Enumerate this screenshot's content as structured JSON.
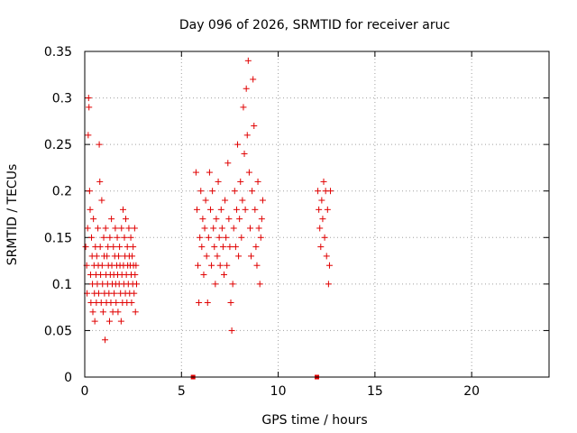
{
  "chart_data": {
    "type": "scatter",
    "title": "Day 096 of 2026, SRMTID for receiver aruc",
    "xlabel": "GPS time / hours",
    "ylabel": "SRMTID / TECUs",
    "xlim": [
      0,
      24
    ],
    "ylim": [
      0,
      0.35
    ],
    "xticks": [
      0,
      5,
      10,
      15,
      20
    ],
    "yticks": [
      0,
      0.05,
      0.1,
      0.15,
      0.2,
      0.25,
      0.3,
      0.35
    ],
    "xtick_labels": [
      "0",
      "5",
      "10",
      "15",
      "20"
    ],
    "ytick_labels": [
      "0",
      "0.05",
      "0.1",
      "0.15",
      "0.2",
      "0.25",
      "0.3",
      "0.35"
    ],
    "grid": true,
    "marker": "plus",
    "color": "#e00000",
    "series": [
      {
        "name": "SRMTID",
        "points": [
          [
            0.05,
            0.14
          ],
          [
            0.1,
            0.12
          ],
          [
            0.12,
            0.09
          ],
          [
            0.15,
            0.16
          ],
          [
            0.18,
            0.26
          ],
          [
            0.2,
            0.3
          ],
          [
            0.22,
            0.29
          ],
          [
            0.25,
            0.2
          ],
          [
            0.28,
            0.18
          ],
          [
            0.3,
            0.11
          ],
          [
            0.32,
            0.08
          ],
          [
            0.35,
            0.15
          ],
          [
            0.38,
            0.13
          ],
          [
            0.4,
            0.1
          ],
          [
            0.42,
            0.07
          ],
          [
            0.45,
            0.17
          ],
          [
            0.48,
            0.12
          ],
          [
            0.5,
            0.09
          ],
          [
            0.52,
            0.06
          ],
          [
            0.55,
            0.14
          ],
          [
            0.58,
            0.11
          ],
          [
            0.6,
            0.08
          ],
          [
            0.62,
            0.13
          ],
          [
            0.65,
            0.1
          ],
          [
            0.68,
            0.16
          ],
          [
            0.7,
            0.12
          ],
          [
            0.72,
            0.09
          ],
          [
            0.75,
            0.25
          ],
          [
            0.78,
            0.21
          ],
          [
            0.8,
            0.14
          ],
          [
            0.82,
            0.11
          ],
          [
            0.85,
            0.08
          ],
          [
            0.88,
            0.19
          ],
          [
            0.9,
            0.12
          ],
          [
            0.92,
            0.1
          ],
          [
            0.95,
            0.07
          ],
          [
            0.98,
            0.15
          ],
          [
            1.0,
            0.13
          ],
          [
            1.02,
            0.09
          ],
          [
            1.05,
            0.04
          ],
          [
            1.08,
            0.16
          ],
          [
            1.1,
            0.11
          ],
          [
            1.12,
            0.08
          ],
          [
            1.15,
            0.13
          ],
          [
            1.18,
            0.1
          ],
          [
            1.2,
            0.14
          ],
          [
            1.22,
            0.12
          ],
          [
            1.25,
            0.09
          ],
          [
            1.28,
            0.06
          ],
          [
            1.3,
            0.15
          ],
          [
            1.32,
            0.11
          ],
          [
            1.35,
            0.08
          ],
          [
            1.38,
            0.17
          ],
          [
            1.4,
            0.12
          ],
          [
            1.42,
            0.1
          ],
          [
            1.45,
            0.07
          ],
          [
            1.48,
            0.14
          ],
          [
            1.5,
            0.11
          ],
          [
            1.52,
            0.09
          ],
          [
            1.55,
            0.13
          ],
          [
            1.58,
            0.16
          ],
          [
            1.6,
            0.1
          ],
          [
            1.62,
            0.08
          ],
          [
            1.65,
            0.12
          ],
          [
            1.68,
            0.15
          ],
          [
            1.7,
            0.11
          ],
          [
            1.72,
            0.07
          ],
          [
            1.75,
            0.13
          ],
          [
            1.78,
            0.1
          ],
          [
            1.8,
            0.14
          ],
          [
            1.82,
            0.12
          ],
          [
            1.85,
            0.09
          ],
          [
            1.88,
            0.06
          ],
          [
            1.9,
            0.16
          ],
          [
            1.92,
            0.11
          ],
          [
            1.95,
            0.08
          ],
          [
            1.98,
            0.18
          ],
          [
            2.0,
            0.12
          ],
          [
            2.02,
            0.1
          ],
          [
            2.05,
            0.15
          ],
          [
            2.08,
            0.13
          ],
          [
            2.1,
            0.09
          ],
          [
            2.12,
            0.17
          ],
          [
            2.15,
            0.11
          ],
          [
            2.18,
            0.08
          ],
          [
            2.2,
            0.14
          ],
          [
            2.22,
            0.12
          ],
          [
            2.25,
            0.1
          ],
          [
            2.28,
            0.16
          ],
          [
            2.3,
            0.13
          ],
          [
            2.32,
            0.09
          ],
          [
            2.35,
            0.12
          ],
          [
            2.38,
            0.15
          ],
          [
            2.4,
            0.11
          ],
          [
            2.42,
            0.08
          ],
          [
            2.45,
            0.13
          ],
          [
            2.48,
            0.1
          ],
          [
            2.5,
            0.14
          ],
          [
            2.52,
            0.12
          ],
          [
            2.55,
            0.09
          ],
          [
            2.58,
            0.16
          ],
          [
            2.6,
            0.11
          ],
          [
            2.62,
            0.07
          ],
          [
            2.65,
            0.12
          ],
          [
            2.68,
            0.1
          ],
          [
            5.75,
            0.22
          ],
          [
            5.8,
            0.18
          ],
          [
            5.85,
            0.12
          ],
          [
            5.9,
            0.08
          ],
          [
            5.95,
            0.15
          ],
          [
            6.0,
            0.2
          ],
          [
            6.05,
            0.14
          ],
          [
            6.1,
            0.17
          ],
          [
            6.15,
            0.11
          ],
          [
            6.2,
            0.16
          ],
          [
            6.25,
            0.19
          ],
          [
            6.3,
            0.13
          ],
          [
            6.35,
            0.08
          ],
          [
            6.4,
            0.15
          ],
          [
            6.45,
            0.22
          ],
          [
            6.5,
            0.18
          ],
          [
            6.55,
            0.12
          ],
          [
            6.6,
            0.2
          ],
          [
            6.65,
            0.16
          ],
          [
            6.7,
            0.14
          ],
          [
            6.75,
            0.1
          ],
          [
            6.8,
            0.17
          ],
          [
            6.85,
            0.13
          ],
          [
            6.9,
            0.21
          ],
          [
            6.95,
            0.15
          ],
          [
            7.0,
            0.12
          ],
          [
            7.05,
            0.18
          ],
          [
            7.1,
            0.16
          ],
          [
            7.15,
            0.14
          ],
          [
            7.2,
            0.11
          ],
          [
            7.25,
            0.19
          ],
          [
            7.3,
            0.15
          ],
          [
            7.35,
            0.12
          ],
          [
            7.4,
            0.23
          ],
          [
            7.45,
            0.17
          ],
          [
            7.5,
            0.14
          ],
          [
            7.55,
            0.08
          ],
          [
            7.6,
            0.05
          ],
          [
            7.65,
            0.1
          ],
          [
            7.7,
            0.16
          ],
          [
            7.75,
            0.2
          ],
          [
            7.8,
            0.14
          ],
          [
            7.85,
            0.18
          ],
          [
            7.9,
            0.25
          ],
          [
            7.95,
            0.13
          ],
          [
            8.0,
            0.17
          ],
          [
            8.05,
            0.21
          ],
          [
            8.1,
            0.15
          ],
          [
            8.15,
            0.19
          ],
          [
            8.2,
            0.29
          ],
          [
            8.25,
            0.24
          ],
          [
            8.3,
            0.18
          ],
          [
            8.35,
            0.31
          ],
          [
            8.4,
            0.26
          ],
          [
            8.45,
            0.34
          ],
          [
            8.5,
            0.22
          ],
          [
            8.55,
            0.16
          ],
          [
            8.6,
            0.13
          ],
          [
            8.65,
            0.2
          ],
          [
            8.7,
            0.32
          ],
          [
            8.75,
            0.27
          ],
          [
            8.8,
            0.18
          ],
          [
            8.85,
            0.14
          ],
          [
            8.9,
            0.12
          ],
          [
            8.95,
            0.21
          ],
          [
            9.0,
            0.16
          ],
          [
            9.05,
            0.1
          ],
          [
            9.1,
            0.15
          ],
          [
            9.15,
            0.17
          ],
          [
            9.2,
            0.19
          ],
          [
            12.05,
            0.2
          ],
          [
            12.1,
            0.18
          ],
          [
            12.15,
            0.16
          ],
          [
            12.2,
            0.14
          ],
          [
            12.25,
            0.19
          ],
          [
            12.3,
            0.17
          ],
          [
            12.35,
            0.21
          ],
          [
            12.4,
            0.15
          ],
          [
            12.45,
            0.2
          ],
          [
            12.5,
            0.13
          ],
          [
            12.55,
            0.18
          ],
          [
            12.6,
            0.1
          ],
          [
            12.65,
            0.12
          ],
          [
            12.7,
            0.2
          ]
        ]
      }
    ],
    "gap_markers_x": [
      5.6,
      12.0
    ]
  }
}
